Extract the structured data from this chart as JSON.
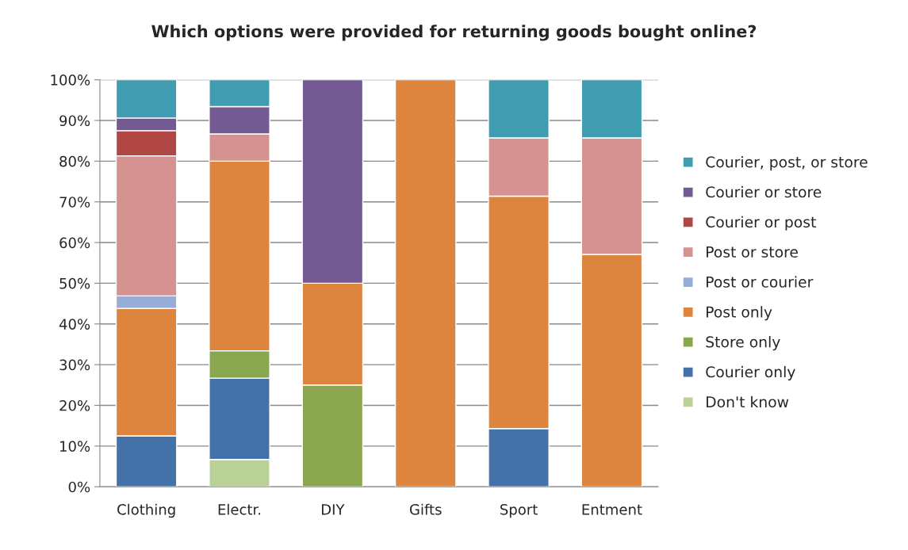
{
  "chart_data": {
    "type": "bar",
    "stacked": true,
    "title": "Which options were provided for returning goods bought online?",
    "categories": [
      "Clothing",
      "Electr.",
      "DIY",
      "Gifts",
      "Sport",
      "Entment"
    ],
    "series": [
      {
        "name": "Don't know",
        "color": "#b9d096",
        "values": [
          null,
          6.7,
          null,
          null,
          null,
          null
        ]
      },
      {
        "name": "Courier only",
        "color": "#4472a8",
        "values": [
          12.5,
          20.0,
          null,
          null,
          14.3,
          null
        ]
      },
      {
        "name": "Store only",
        "color": "#8aa64e",
        "values": [
          null,
          6.7,
          25.0,
          null,
          null,
          null
        ]
      },
      {
        "name": "Post only",
        "color": "#dd843f",
        "values": [
          31.3,
          46.6,
          25.0,
          100.0,
          57.1,
          57.1
        ]
      },
      {
        "name": "Post or courier",
        "color": "#97acd6",
        "values": [
          3.1,
          null,
          null,
          null,
          null,
          null
        ]
      },
      {
        "name": "Post or store",
        "color": "#d49391",
        "values": [
          34.4,
          6.7,
          null,
          null,
          14.3,
          28.6
        ]
      },
      {
        "name": "Courier or post",
        "color": "#b04745",
        "values": [
          6.2,
          null,
          null,
          null,
          null,
          null
        ]
      },
      {
        "name": "Courier or store",
        "color": "#735a93",
        "values": [
          3.1,
          6.7,
          50.0,
          null,
          null,
          null
        ]
      },
      {
        "name": "Courier, post, or store",
        "color": "#3f9cb1",
        "values": [
          9.4,
          6.6,
          null,
          null,
          14.3,
          14.3
        ]
      }
    ],
    "ylim": [
      0,
      100
    ],
    "yticks": [
      {
        "value": 0,
        "label": "0%"
      },
      {
        "value": 10,
        "label": "10%"
      },
      {
        "value": 20,
        "label": "20%"
      },
      {
        "value": 30,
        "label": "30%"
      },
      {
        "value": 40,
        "label": "40%"
      },
      {
        "value": 50,
        "label": "50%"
      },
      {
        "value": 60,
        "label": "60%"
      },
      {
        "value": 70,
        "label": "70%"
      },
      {
        "value": 80,
        "label": "80%"
      },
      {
        "value": 90,
        "label": "90%"
      },
      {
        "value": 100,
        "label": "100%"
      }
    ],
    "grid": "y",
    "legend": "right"
  }
}
